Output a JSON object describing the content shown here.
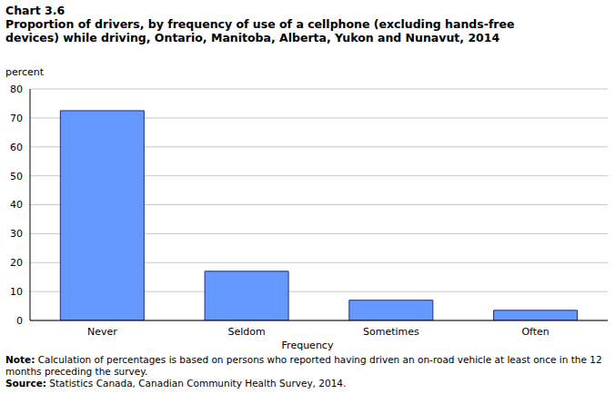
{
  "chart_data": {
    "type": "bar",
    "title": "Chart 3.6",
    "subtitle": "Proportion of drivers, by frequency of use of a cellphone (excluding hands-free devices) while driving, Ontario, Manitoba, Alberta, Yukon and Nunavut, 2014",
    "y_label": "percent",
    "x_label": "Frequency",
    "categories": [
      "Never",
      "Seldom",
      "Sometimes",
      "Often"
    ],
    "values": [
      72.5,
      17,
      7,
      3.5
    ],
    "color": "#6699ff",
    "ylim": [
      0,
      80
    ],
    "yticks": [
      0,
      10,
      20,
      30,
      40,
      50,
      60,
      70,
      80
    ],
    "grid": true,
    "notes": [
      "Note: Calculation of percentages is based on persons who reported having driven an on-road vehicle at least once in the 12 months preceding the survey.",
      "Source: Statistics Canada, Canadian Community Health Survey, 2014."
    ]
  }
}
